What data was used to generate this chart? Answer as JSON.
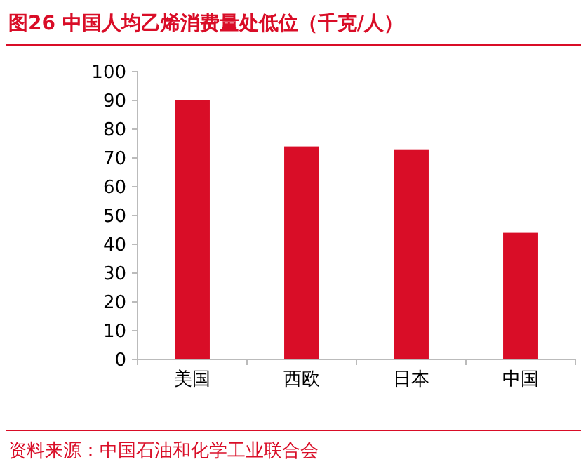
{
  "chart_data": {
    "type": "bar",
    "title": "图26  中国人均乙烯消费量处低位（千克/人）",
    "categories": [
      "美国",
      "西欧",
      "日本",
      "中国"
    ],
    "values": [
      90,
      74,
      73,
      44
    ],
    "color": "#d90d27",
    "ylim": [
      0,
      100
    ],
    "yticks": [
      0,
      10,
      20,
      30,
      40,
      50,
      60,
      70,
      80,
      90,
      100
    ],
    "grid": false,
    "annotations": [
      "资料来源：中国石油和化学工业联合会"
    ]
  }
}
